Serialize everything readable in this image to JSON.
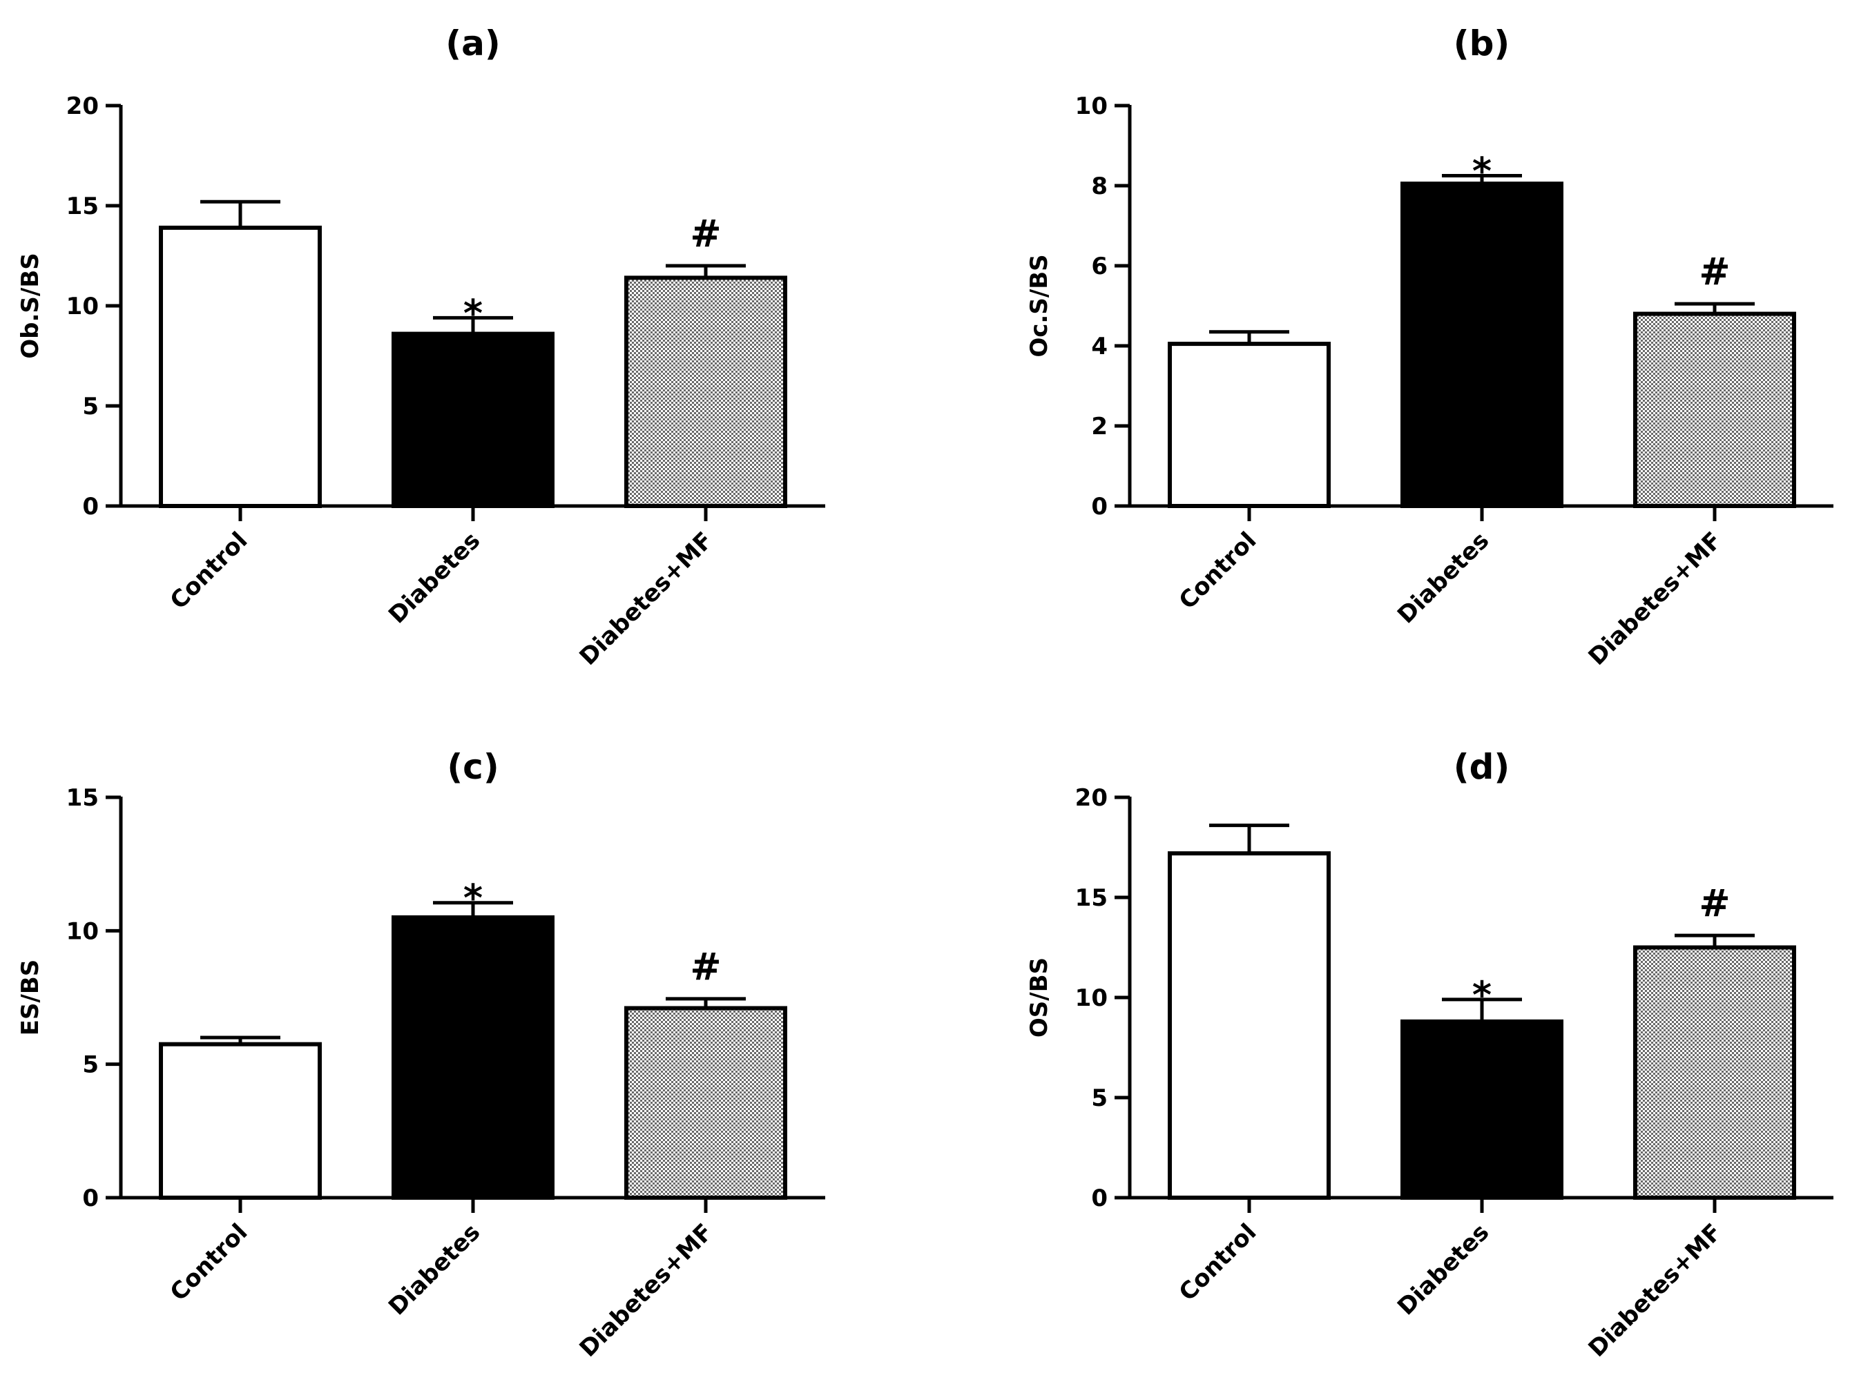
{
  "colors": {
    "axis": "#000000",
    "control_fill": "#ffffff",
    "diabetes_fill": "#000000",
    "mf_fill_light": "#ffffff",
    "mf_fill_dark": "#6a6a6a"
  },
  "chart_data": [
    {
      "type": "bar",
      "title": "(a)",
      "ylabel": "Ob.S/BS",
      "xlabel": "",
      "categories": [
        "Control",
        "Diabetes",
        "Diabetes+MF"
      ],
      "values": [
        13.9,
        8.6,
        11.4
      ],
      "errors": [
        1.3,
        0.8,
        0.6
      ],
      "fills": [
        "white",
        "black",
        "checker"
      ],
      "significance": [
        "",
        "*",
        "#"
      ],
      "ylim": [
        0,
        20
      ],
      "yticks": [
        0,
        5,
        10,
        15,
        20
      ]
    },
    {
      "type": "bar",
      "title": "(b)",
      "ylabel": "Oc.S/BS",
      "xlabel": "",
      "categories": [
        "Control",
        "Diabetes",
        "Diabetes+MF"
      ],
      "values": [
        4.05,
        8.05,
        4.8
      ],
      "errors": [
        0.3,
        0.2,
        0.25
      ],
      "fills": [
        "white",
        "black",
        "checker"
      ],
      "significance": [
        "",
        "*",
        "#"
      ],
      "ylim": [
        0,
        10
      ],
      "yticks": [
        0,
        2,
        4,
        6,
        8,
        10
      ]
    },
    {
      "type": "bar",
      "title": "(c)",
      "ylabel": "ES/BS",
      "xlabel": "",
      "categories": [
        "Control",
        "Diabetes",
        "Diabetes+MF"
      ],
      "values": [
        5.75,
        10.5,
        7.1
      ],
      "errors": [
        0.25,
        0.55,
        0.35
      ],
      "fills": [
        "white",
        "black",
        "checker"
      ],
      "significance": [
        "",
        "*",
        "#"
      ],
      "ylim": [
        0,
        15
      ],
      "yticks": [
        0,
        5,
        10,
        15
      ]
    },
    {
      "type": "bar",
      "title": "(d)",
      "ylabel": "OS/BS",
      "xlabel": "",
      "categories": [
        "Control",
        "Diabetes",
        "Diabetes+MF"
      ],
      "values": [
        17.2,
        8.8,
        12.5
      ],
      "errors": [
        1.4,
        1.1,
        0.6
      ],
      "fills": [
        "white",
        "black",
        "checker"
      ],
      "significance": [
        "",
        "*",
        "#"
      ],
      "ylim": [
        0,
        20
      ],
      "yticks": [
        0,
        5,
        10,
        15,
        20
      ]
    }
  ]
}
